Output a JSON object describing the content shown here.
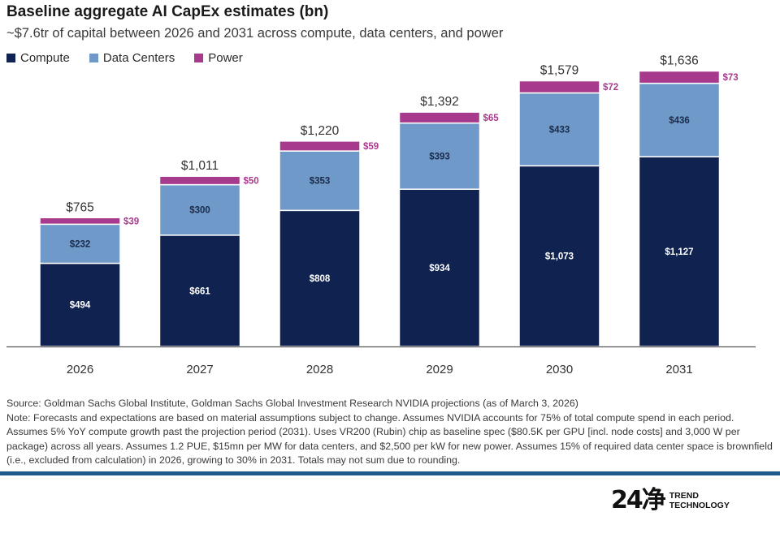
{
  "header": {
    "title": "Baseline aggregate AI CapEx estimates (bn)",
    "subtitle": "~$7.6tr of capital between 2026 and 2031 across compute, data centers, and power"
  },
  "legend": {
    "compute": "Compute",
    "data_centers": "Data Centers",
    "power": "Power"
  },
  "colors": {
    "compute": "#0f2250",
    "data_centers": "#6f99c9",
    "power": "#a83a8e",
    "power_label": "#a83a8e"
  },
  "chart_data": {
    "type": "bar",
    "stacked": true,
    "categories": [
      "2026",
      "2027",
      "2028",
      "2029",
      "2030",
      "2031"
    ],
    "series": [
      {
        "name": "Compute",
        "values": [
          494,
          661,
          808,
          934,
          1073,
          1127
        ],
        "labels": [
          "$494",
          "$661",
          "$808",
          "$934",
          "$1,073",
          "$1,127"
        ]
      },
      {
        "name": "Data Centers",
        "values": [
          232,
          300,
          353,
          393,
          433,
          436
        ],
        "labels": [
          "$232",
          "$300",
          "$353",
          "$393",
          "$433",
          "$436"
        ]
      },
      {
        "name": "Power",
        "values": [
          39,
          50,
          59,
          65,
          72,
          73
        ],
        "labels": [
          "$39",
          "$50",
          "$59",
          "$65",
          "$72",
          "$73"
        ]
      }
    ],
    "totals": [
      "$765",
      "$1,011",
      "$1,220",
      "$1,392",
      "$1,579",
      "$1,636"
    ],
    "title": "Baseline aggregate AI CapEx estimates (bn)",
    "xlabel": "",
    "ylabel": "",
    "ylim": [
      0,
      1700
    ],
    "grid": false,
    "legend_position": "top-left"
  },
  "notes": {
    "source": "Source: Goldman Sachs Global Institute, Goldman Sachs Global Investment Research NVIDIA projections (as of March 3, 2026)",
    "note": "Note: Forecasts and expectations are based on material assumptions subject to change. Assumes NVIDIA accounts for 75% of total compute spend in each period. Assumes 5% YoY compute growth past the projection period (2031). Uses VR200 (Rubin) chip as baseline spec ($80.5K per GPU [incl. node costs] and 3,000 W per package) across all years. Assumes 1.2 PUE, $15mn per MW for data centers, and $2,500 per kW for new power. Assumes 15% of required data center space is brownfield (i.e., excluded from calculation) in 2026, growing to 30% in 2031. Totals may not sum due to rounding."
  },
  "watermark": {
    "mark": "24净",
    "line1": "TREND",
    "line2": "TECHNOLOGY"
  }
}
